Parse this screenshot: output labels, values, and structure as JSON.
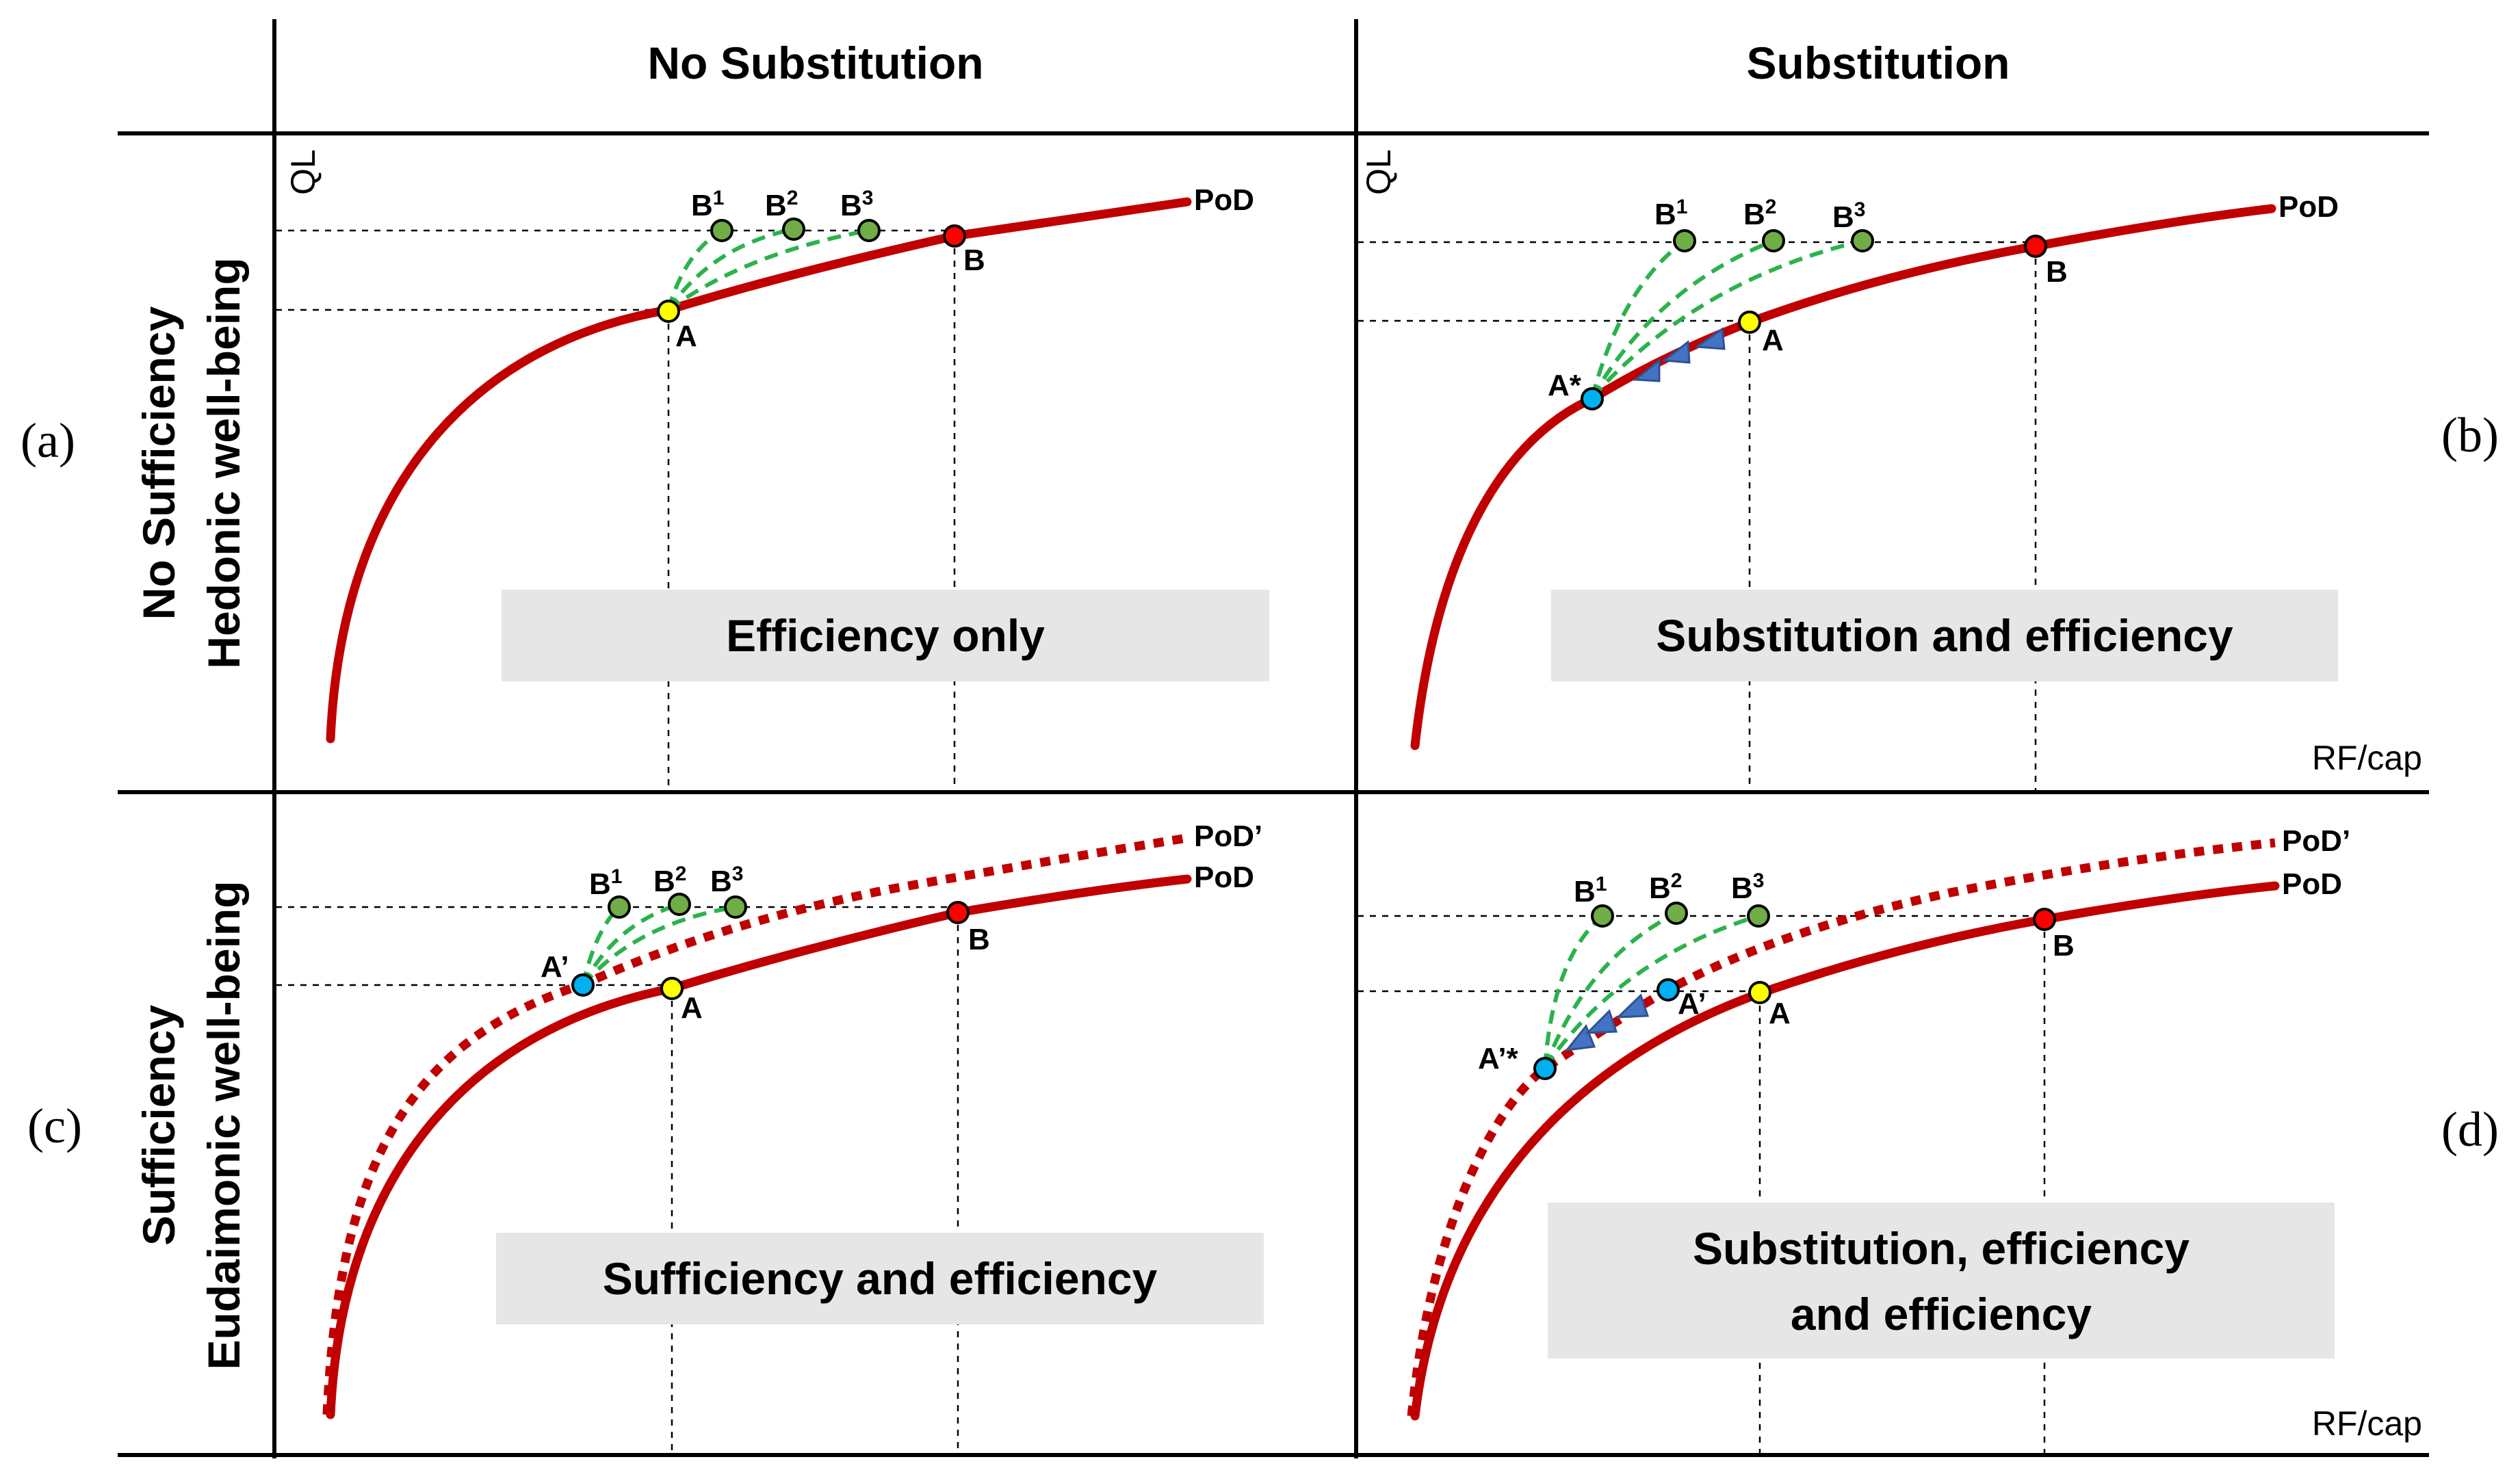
{
  "columns": [
    "No Substitution",
    "Substitution"
  ],
  "rows": [
    {
      "line1": "No Sufficiency",
      "line2": "Hedonic well-being"
    },
    {
      "line1": "Sufficiency",
      "line2": "Eudaimonic well-being"
    }
  ],
  "panel_labels": {
    "a": "(a)",
    "b": "(b)",
    "c": "(c)",
    "d": "(d)"
  },
  "axis": {
    "y": "QL",
    "x": "RF/cap"
  },
  "curves": {
    "pod": "PoD",
    "pod_prime": "PoD’"
  },
  "points": {
    "a": "A",
    "b": "B",
    "b_base": "B",
    "sup1": "1",
    "sup2": "2",
    "sup3": "3",
    "a_star": "A*",
    "a_prime": "A’",
    "a_prime_star": "A’*"
  },
  "boxes": {
    "a": "Efficiency only",
    "b": "Substitution and efficiency",
    "c": "Sufficiency and efficiency",
    "d_line1": "Substitution, efficiency",
    "d_line2": "and efficiency"
  },
  "colors": {
    "pod": "#c00000",
    "arcs": "#2bb24c",
    "point_a": "#ffff00",
    "point_b": "#ff0000",
    "point_b_variants": "#70ad47",
    "point_shifted": "#00b0f0",
    "arrows": "#4472c4",
    "box_fill": "#e6e6e6"
  }
}
